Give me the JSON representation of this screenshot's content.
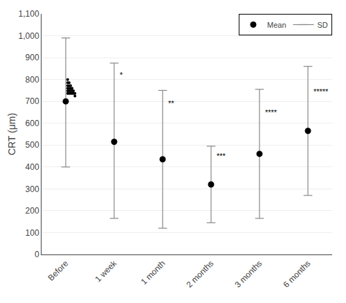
{
  "chart_data": {
    "type": "dot",
    "categories": [
      "Before",
      "1 week",
      "1 month",
      "2 months",
      "3 months",
      "6 months"
    ],
    "ylabel": "CRT (μm)",
    "ylim": [
      0,
      1100
    ],
    "yticks": [
      0,
      100,
      200,
      300,
      400,
      500,
      600,
      700,
      800,
      900,
      {
        "value": 1000,
        "label": "1,000"
      },
      {
        "value": 1100,
        "label": "1,100"
      }
    ],
    "grid": true,
    "legend": "upper right",
    "series": [
      {
        "name": "Mean",
        "type": "scatter",
        "marker": "circle",
        "color": "#000000",
        "values": [
          700,
          515,
          435,
          320,
          460,
          565
        ]
      },
      {
        "name": "SD",
        "type": "errorbar",
        "color": "#888888",
        "upper": [
          990,
          875,
          750,
          495,
          755,
          860
        ],
        "lower": [
          400,
          165,
          120,
          145,
          165,
          270
        ]
      },
      {
        "type": "scatter",
        "marker": "dot",
        "color": "#000000",
        "x": [
          0.04,
          0.04,
          0.07,
          0.04,
          0.07,
          0.1,
          0.04,
          0.07,
          0.1,
          0.13,
          0.04,
          0.07,
          0.1,
          0.13,
          0.16,
          0.04,
          0.07,
          0.1,
          0.13,
          0.16,
          0.19,
          0.19
        ],
        "values": [
          800,
          785,
          785,
          772,
          772,
          772,
          760,
          760,
          760,
          760,
          748,
          748,
          748,
          748,
          748,
          736,
          736,
          736,
          736,
          736,
          736,
          724
        ]
      }
    ],
    "annotations": [
      {
        "category": "1 week",
        "text": "*",
        "y": 820
      },
      {
        "category": "1 month",
        "text": "**",
        "y": 690
      },
      {
        "category": "2 months",
        "text": "***",
        "y": 450
      },
      {
        "category": "3 months",
        "text": "****",
        "y": 650
      },
      {
        "category": "6 months",
        "text": "*****",
        "y": 745
      }
    ]
  }
}
